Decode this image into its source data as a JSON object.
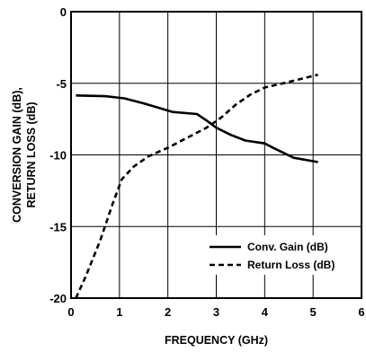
{
  "chart_data": {
    "type": "line",
    "xlabel": "FREQUENCY (GHz)",
    "ylabel_lines": [
      "CONVERSION GAIN (dB),",
      "RETURN LOSS (dB)"
    ],
    "xlim": [
      0,
      6
    ],
    "ylim": [
      -20,
      0
    ],
    "x_ticks": [
      0,
      1,
      2,
      3,
      4,
      5,
      6
    ],
    "y_ticks": [
      0,
      -5,
      -10,
      -15,
      -20
    ],
    "x_tick_labels": [
      "0",
      "1",
      "2",
      "3",
      "4",
      "5",
      "6"
    ],
    "y_tick_labels": [
      "0",
      "-5",
      "-10",
      "-15",
      "-20"
    ],
    "grid": true,
    "legend_position": "bottom-right",
    "series": [
      {
        "name": "Conv. Gain (dB)",
        "style": "solid",
        "color": "#000000",
        "x": [
          0.1,
          0.7,
          1.1,
          1.5,
          1.9,
          2.1,
          2.6,
          2.8,
          3.0,
          3.3,
          3.6,
          4.0,
          4.2,
          4.6,
          5.1
        ],
        "y": [
          -5.85,
          -5.9,
          -6.05,
          -6.4,
          -6.8,
          -7.0,
          -7.15,
          -7.6,
          -8.1,
          -8.6,
          -9.0,
          -9.2,
          -9.55,
          -10.2,
          -10.5
        ]
      },
      {
        "name": "Return Loss (dB)",
        "style": "dashed",
        "color": "#000000",
        "x": [
          0.1,
          0.3,
          0.6,
          0.85,
          1.05,
          1.3,
          1.6,
          2.0,
          2.4,
          2.8,
          3.1,
          3.4,
          3.7,
          4.0,
          4.5,
          5.1
        ],
        "y": [
          -20,
          -18.5,
          -16.0,
          -13.5,
          -11.7,
          -10.8,
          -10.1,
          -9.5,
          -8.8,
          -8.1,
          -7.4,
          -6.5,
          -5.8,
          -5.3,
          -4.9,
          -4.4
        ]
      }
    ]
  }
}
